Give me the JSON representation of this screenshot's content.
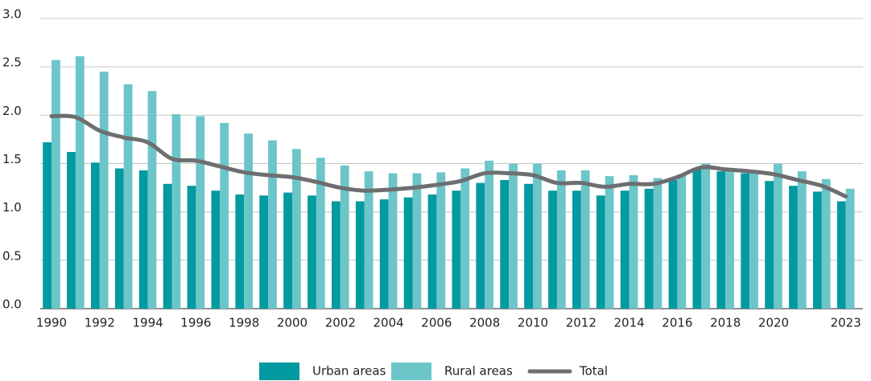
{
  "chart_data": {
    "type": "bar",
    "categories": [
      "1990",
      null,
      "1992",
      null,
      "1994",
      null,
      "1996",
      null,
      "1998",
      null,
      "2000",
      null,
      "2002",
      null,
      "2004",
      null,
      "2006",
      null,
      "2008",
      null,
      "2010",
      null,
      "2012",
      null,
      "2014",
      null,
      "2016",
      null,
      "2018",
      null,
      "2020",
      null,
      null,
      "2023"
    ],
    "series": [
      {
        "name": "Urban areas",
        "color": "#009aa0",
        "type": "bar",
        "values": [
          1.72,
          1.62,
          1.51,
          1.45,
          1.43,
          1.29,
          1.27,
          1.22,
          1.18,
          1.17,
          1.2,
          1.17,
          1.11,
          1.11,
          1.13,
          1.15,
          1.18,
          1.22,
          1.3,
          1.33,
          1.29,
          1.22,
          1.22,
          1.17,
          1.22,
          1.24,
          1.33,
          1.45,
          1.42,
          1.4,
          1.32,
          1.27,
          1.21,
          1.11
        ]
      },
      {
        "name": "Rural areas",
        "color": "#6cc6c9",
        "type": "bar",
        "values": [
          2.57,
          2.61,
          2.45,
          2.32,
          2.25,
          2.01,
          1.99,
          1.92,
          1.81,
          1.74,
          1.65,
          1.56,
          1.48,
          1.42,
          1.4,
          1.4,
          1.41,
          1.45,
          1.53,
          1.5,
          1.5,
          1.43,
          1.43,
          1.37,
          1.38,
          1.35,
          1.39,
          1.5,
          1.45,
          1.43,
          1.5,
          1.42,
          1.34,
          1.24
        ]
      },
      {
        "name": "Total",
        "color": "#6d6e70",
        "type": "line",
        "values": [
          1.99,
          1.98,
          1.84,
          1.77,
          1.72,
          1.55,
          1.53,
          1.47,
          1.41,
          1.38,
          1.36,
          1.31,
          1.25,
          1.22,
          1.23,
          1.25,
          1.28,
          1.32,
          1.4,
          1.4,
          1.38,
          1.3,
          1.3,
          1.26,
          1.29,
          1.29,
          1.36,
          1.46,
          1.44,
          1.42,
          1.39,
          1.33,
          1.27,
          1.16
        ]
      }
    ],
    "ylim": [
      0,
      3
    ],
    "yticks": [
      {
        "value": 0,
        "label": "0.0"
      },
      0.5,
      {
        "value": 1,
        "label": "1.0"
      },
      1.5,
      {
        "value": 2,
        "label": "2.0"
      },
      2.5,
      {
        "value": 3,
        "label": "3.0"
      }
    ],
    "grid": true,
    "legend": "bottom"
  }
}
